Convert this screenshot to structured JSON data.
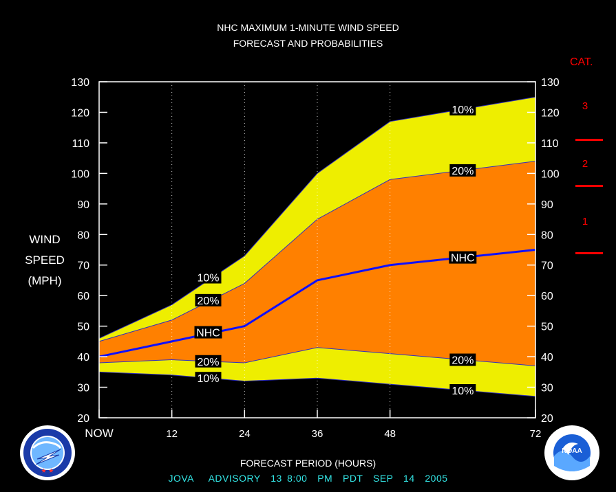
{
  "title_line1": "NHC MAXIMUM 1-MINUTE WIND SPEED",
  "title_line2": "FORECAST AND PROBABILITIES",
  "ylabel_lines": [
    "WIND",
    "SPEED",
    "(MPH)"
  ],
  "xlabel": "FORECAST PERIOD (HOURS)",
  "advisory": "JOVA   ADVISORY  13 8:00  PM  PDT  SEP  14  2005",
  "categories": {
    "title": "CAT.",
    "labels": [
      {
        "num": "3",
        "mid_mph": 122
      },
      {
        "num": "2",
        "mid_mph": 103
      },
      {
        "num": "1",
        "mid_mph": 84
      }
    ],
    "boundaries_mph": [
      111,
      96,
      74
    ],
    "color": "#ff0000"
  },
  "colors": {
    "band_10_90": "#eeee00",
    "band_20_80": "#ff8000",
    "nhc_line": "#1010ff",
    "advisory_text": "#33e5e5",
    "background": "#000000"
  },
  "chart_data": {
    "type": "area",
    "x": [
      0,
      12,
      24,
      36,
      48,
      60,
      72
    ],
    "xticks": [
      0,
      12,
      24,
      36,
      48,
      72
    ],
    "xtick_labels": [
      "NOW",
      "12",
      "24",
      "36",
      "48",
      "72"
    ],
    "yticks": [
      20,
      30,
      40,
      50,
      60,
      70,
      80,
      90,
      100,
      110,
      120,
      130
    ],
    "xlim": [
      0,
      72
    ],
    "ylim": [
      20,
      130
    ],
    "grid": "vertical dotted",
    "series": [
      {
        "name": "10%",
        "values": [
          46,
          57,
          73,
          100,
          117,
          121,
          125
        ]
      },
      {
        "name": "20%",
        "values": [
          45,
          52,
          64,
          85,
          98,
          101,
          104
        ]
      },
      {
        "name": "NHC",
        "values": [
          40,
          45,
          50,
          65,
          70,
          72.5,
          75
        ]
      },
      {
        "name": "20%",
        "values": [
          38,
          39,
          38,
          43,
          41,
          39,
          37
        ]
      },
      {
        "name": "10%",
        "values": [
          35,
          34,
          32,
          33,
          31,
          29,
          27
        ]
      }
    ],
    "labels": [
      {
        "text": "10%",
        "x": 18,
        "y": 66
      },
      {
        "text": "20%",
        "x": 18,
        "y": 58.5
      },
      {
        "text": "NHC",
        "x": 18,
        "y": 48
      },
      {
        "text": "20%",
        "x": 18,
        "y": 38.5
      },
      {
        "text": "10%",
        "x": 18,
        "y": 33
      },
      {
        "text": "10%",
        "x": 60,
        "y": 121
      },
      {
        "text": "20%",
        "x": 60,
        "y": 101
      },
      {
        "text": "NHC",
        "x": 60,
        "y": 72.5
      },
      {
        "text": "20%",
        "x": 60,
        "y": 39
      },
      {
        "text": "10%",
        "x": 60,
        "y": 29
      }
    ]
  },
  "logos": {
    "left": "national-weather-service-logo",
    "right": "noaa-logo",
    "noaa_text": "NOAA"
  }
}
